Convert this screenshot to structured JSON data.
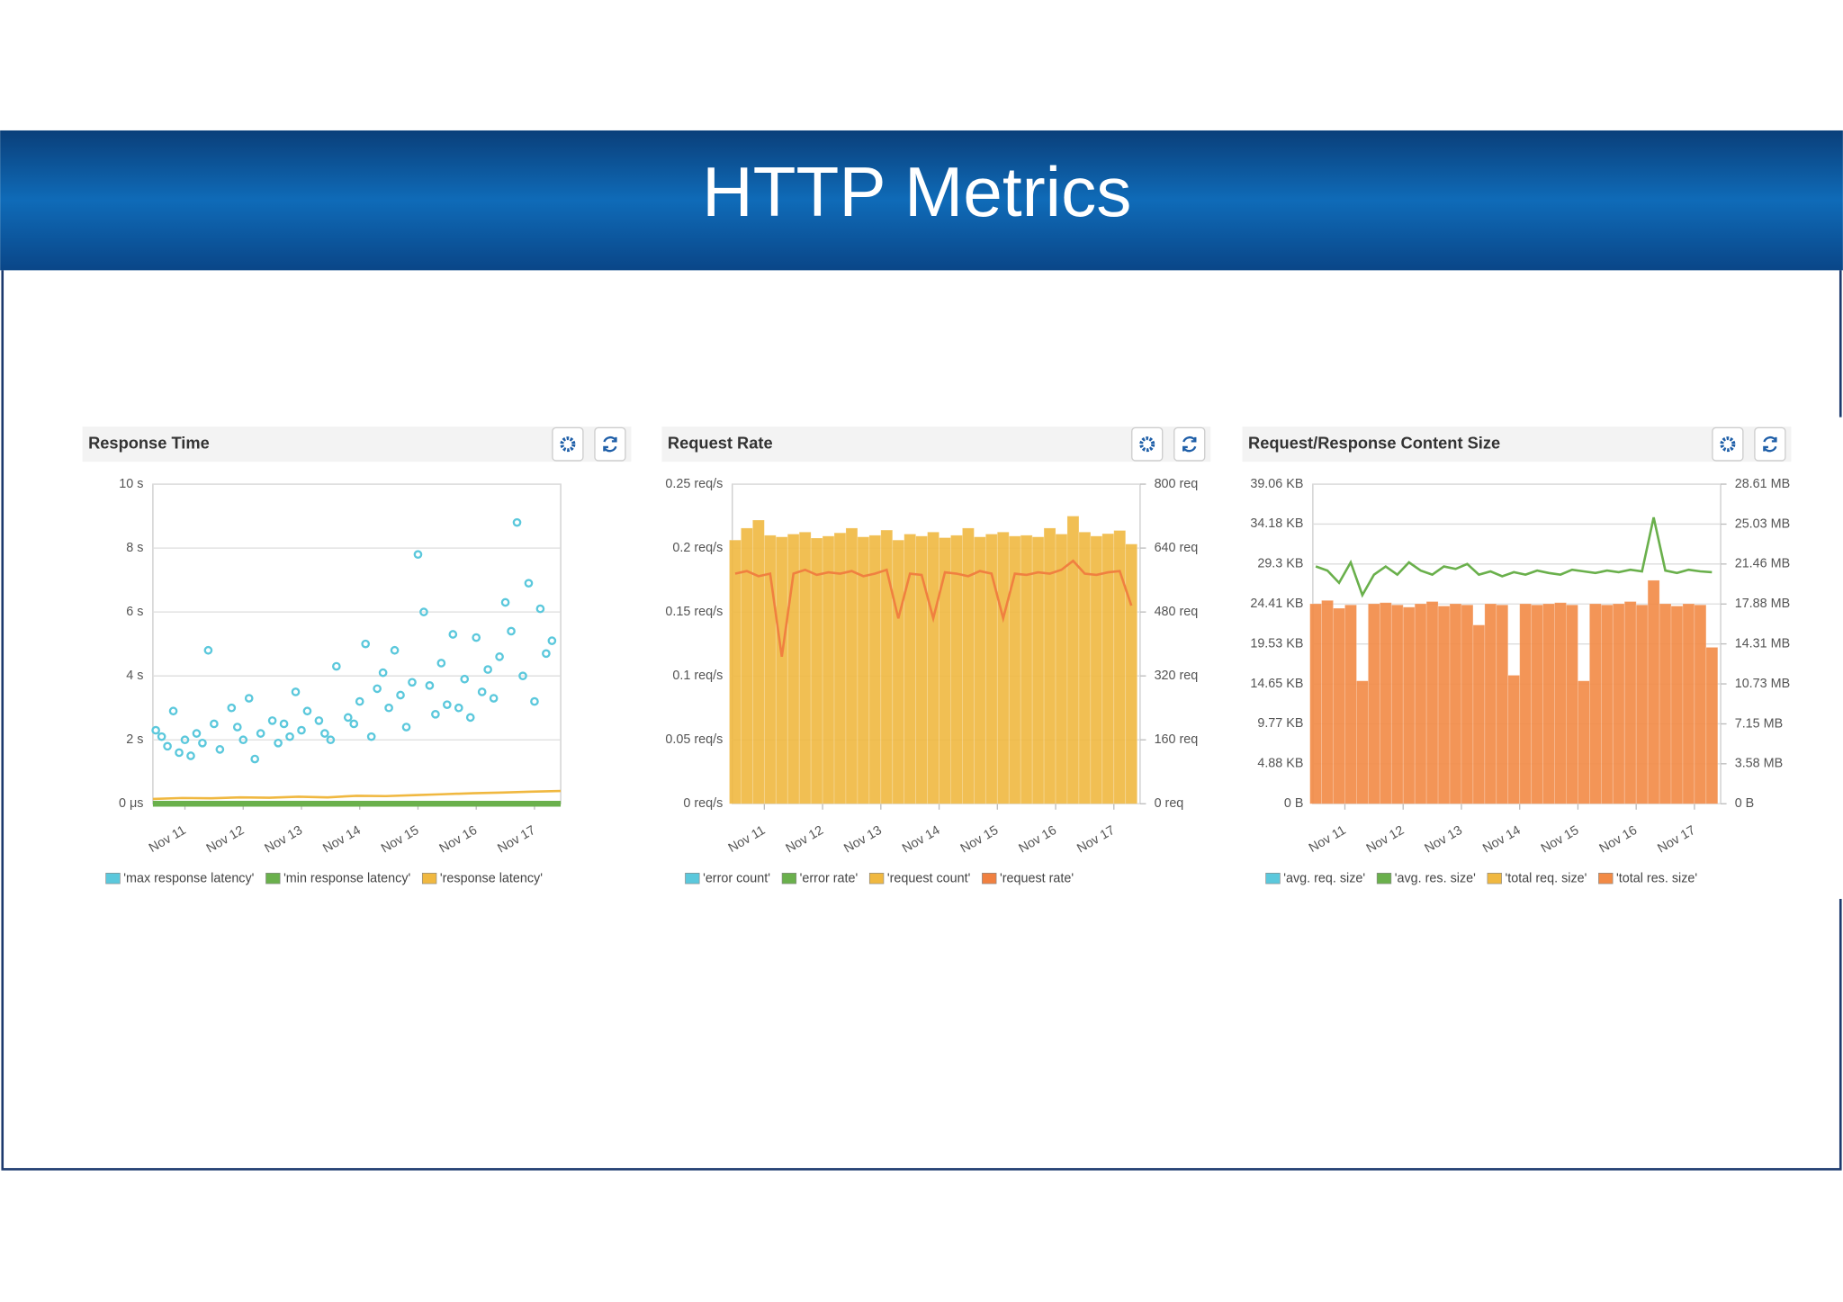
{
  "title": "HTTP Metrics",
  "chart_data": [
    {
      "type": "scatter",
      "title": "Response Time",
      "xlim": [
        10.45,
        17.45
      ],
      "xticks": [
        {
          "value": 11,
          "label": "Nov 11"
        },
        {
          "value": 12,
          "label": "Nov 12"
        },
        {
          "value": 13,
          "label": "Nov 13"
        },
        {
          "value": 14,
          "label": "Nov 14"
        },
        {
          "value": 15,
          "label": "Nov 15"
        },
        {
          "value": 16,
          "label": "Nov 16"
        },
        {
          "value": 17,
          "label": "Nov 17"
        }
      ],
      "ylim": [
        0,
        10
      ],
      "yticks": [
        {
          "value": 0,
          "label": "0 μs"
        },
        {
          "value": 2,
          "label": "2 s"
        },
        {
          "value": 4,
          "label": "4 s"
        },
        {
          "value": 6,
          "label": "6 s"
        },
        {
          "value": 8,
          "label": "8 s"
        },
        {
          "value": 10,
          "label": "10 s"
        }
      ],
      "grid": true,
      "series": [
        {
          "name": "'max response latency'",
          "color": "#5bc8dc",
          "type": "scatter",
          "x": [
            10.5,
            10.6,
            10.7,
            10.8,
            10.9,
            11.0,
            11.1,
            11.2,
            11.3,
            11.4,
            11.5,
            11.6,
            11.8,
            11.9,
            12.0,
            12.1,
            12.2,
            12.3,
            12.5,
            12.6,
            12.7,
            12.8,
            12.9,
            13.0,
            13.1,
            13.3,
            13.4,
            13.5,
            13.6,
            13.8,
            13.9,
            14.0,
            14.1,
            14.2,
            14.3,
            14.4,
            14.5,
            14.6,
            14.7,
            14.8,
            14.9,
            15.0,
            15.1,
            15.2,
            15.3,
            15.4,
            15.5,
            15.6,
            15.7,
            15.8,
            15.9,
            16.0,
            16.1,
            16.2,
            16.3,
            16.4,
            16.5,
            16.6,
            16.7,
            16.8,
            16.9,
            17.0,
            17.1,
            17.2,
            17.3
          ],
          "values": [
            2.3,
            2.1,
            1.8,
            2.9,
            1.6,
            2.0,
            1.5,
            2.2,
            1.9,
            4.8,
            2.5,
            1.7,
            3.0,
            2.4,
            2.0,
            3.3,
            1.4,
            2.2,
            2.6,
            1.9,
            2.5,
            2.1,
            3.5,
            2.3,
            2.9,
            2.6,
            2.2,
            2.0,
            4.3,
            2.7,
            2.5,
            3.2,
            5.0,
            2.1,
            3.6,
            4.1,
            3.0,
            4.8,
            3.4,
            2.4,
            3.8,
            7.8,
            6.0,
            3.7,
            2.8,
            4.4,
            3.1,
            5.3,
            3.0,
            3.9,
            2.7,
            5.2,
            3.5,
            4.2,
            3.3,
            4.6,
            6.3,
            5.4,
            8.8,
            4.0,
            6.9,
            3.2,
            6.1,
            4.7,
            5.1
          ]
        },
        {
          "name": "'min response latency'",
          "color": "#6ab04c",
          "type": "line",
          "x": [
            10.45,
            10.95,
            11.45,
            11.95,
            12.45,
            12.95,
            13.45,
            13.95,
            14.45,
            14.95,
            15.45,
            15.95,
            16.45,
            16.95,
            17.45
          ],
          "values": [
            0,
            0,
            0,
            0,
            0,
            0,
            0,
            0,
            0,
            0,
            0,
            0,
            0,
            0,
            0
          ]
        },
        {
          "name": "'response latency'",
          "color": "#f0b840",
          "type": "line",
          "x": [
            10.45,
            10.95,
            11.45,
            11.95,
            12.45,
            12.95,
            13.45,
            13.95,
            14.45,
            14.95,
            15.45,
            15.95,
            16.45,
            16.95,
            17.45
          ],
          "values": [
            0.15,
            0.18,
            0.17,
            0.2,
            0.19,
            0.22,
            0.2,
            0.25,
            0.24,
            0.27,
            0.3,
            0.33,
            0.35,
            0.38,
            0.4
          ]
        }
      ]
    },
    {
      "type": "bar",
      "title": "Request Rate",
      "xlim": [
        10.45,
        17.45
      ],
      "xticks": [
        {
          "value": 11,
          "label": "Nov 11"
        },
        {
          "value": 12,
          "label": "Nov 12"
        },
        {
          "value": 13,
          "label": "Nov 13"
        },
        {
          "value": 14,
          "label": "Nov 14"
        },
        {
          "value": 15,
          "label": "Nov 15"
        },
        {
          "value": 16,
          "label": "Nov 16"
        },
        {
          "value": 17,
          "label": "Nov 17"
        }
      ],
      "ylim": [
        0,
        0.25
      ],
      "yticks": [
        {
          "value": 0,
          "label": "0 req/s"
        },
        {
          "value": 0.05,
          "label": "0.05 req/s"
        },
        {
          "value": 0.1,
          "label": "0.1 req/s"
        },
        {
          "value": 0.15,
          "label": "0.15 req/s"
        },
        {
          "value": 0.2,
          "label": "0.2 req/s"
        },
        {
          "value": 0.25,
          "label": "0.25 req/s"
        }
      ],
      "y2lim": [
        0,
        800
      ],
      "y2ticks": [
        {
          "value": 0,
          "label": "0 req"
        },
        {
          "value": 160,
          "label": "160 req"
        },
        {
          "value": 320,
          "label": "320 req"
        },
        {
          "value": 480,
          "label": "480 req"
        },
        {
          "value": 640,
          "label": "640 req"
        },
        {
          "value": 800,
          "label": "800 req"
        }
      ],
      "grid": true,
      "series": [
        {
          "name": "'error count'",
          "color": "#5bc8dc"
        },
        {
          "name": "'error rate'",
          "color": "#6ab04c"
        },
        {
          "name": "'request count'",
          "color": "#f0b840",
          "type": "bar",
          "axis": "y2",
          "x": [
            10.5,
            10.7,
            10.9,
            11.1,
            11.3,
            11.5,
            11.7,
            11.9,
            12.1,
            12.3,
            12.5,
            12.7,
            12.9,
            13.1,
            13.3,
            13.5,
            13.7,
            13.9,
            14.1,
            14.3,
            14.5,
            14.7,
            14.9,
            15.1,
            15.3,
            15.5,
            15.7,
            15.9,
            16.1,
            16.3,
            16.5,
            16.7,
            16.9,
            17.1,
            17.3
          ],
          "values": [
            660,
            690,
            710,
            672,
            668,
            675,
            680,
            665,
            670,
            678,
            690,
            668,
            672,
            685,
            660,
            675,
            670,
            680,
            666,
            672,
            690,
            668,
            675,
            680,
            670,
            672,
            668,
            690,
            675,
            720,
            680,
            670,
            676,
            684,
            650
          ]
        },
        {
          "name": "'request rate'",
          "color": "#f08040",
          "type": "line",
          "x": [
            10.5,
            10.7,
            10.9,
            11.1,
            11.3,
            11.5,
            11.7,
            11.9,
            12.1,
            12.3,
            12.5,
            12.7,
            12.9,
            13.1,
            13.3,
            13.5,
            13.7,
            13.9,
            14.1,
            14.3,
            14.5,
            14.7,
            14.9,
            15.1,
            15.3,
            15.5,
            15.7,
            15.9,
            16.1,
            16.3,
            16.5,
            16.7,
            16.9,
            17.1,
            17.3
          ],
          "values": [
            0.18,
            0.182,
            0.178,
            0.18,
            0.115,
            0.18,
            0.183,
            0.179,
            0.181,
            0.18,
            0.182,
            0.178,
            0.18,
            0.183,
            0.145,
            0.18,
            0.179,
            0.145,
            0.181,
            0.18,
            0.178,
            0.182,
            0.18,
            0.145,
            0.18,
            0.179,
            0.181,
            0.18,
            0.183,
            0.19,
            0.18,
            0.179,
            0.181,
            0.182,
            0.155
          ]
        }
      ]
    },
    {
      "type": "bar",
      "title": "Request/Response Content Size",
      "xlim": [
        10.45,
        17.45
      ],
      "xticks": [
        {
          "value": 11,
          "label": "Nov 11"
        },
        {
          "value": 12,
          "label": "Nov 12"
        },
        {
          "value": 13,
          "label": "Nov 13"
        },
        {
          "value": 14,
          "label": "Nov 14"
        },
        {
          "value": 15,
          "label": "Nov 15"
        },
        {
          "value": 16,
          "label": "Nov 16"
        },
        {
          "value": 17,
          "label": "Nov 17"
        }
      ],
      "ylim": [
        0,
        39.06
      ],
      "yticks": [
        {
          "value": 0,
          "label": "0 B"
        },
        {
          "value": 4.88,
          "label": "4.88 KB"
        },
        {
          "value": 9.77,
          "label": "9.77 KB"
        },
        {
          "value": 14.65,
          "label": "14.65 KB"
        },
        {
          "value": 19.53,
          "label": "19.53 KB"
        },
        {
          "value": 24.41,
          "label": "24.41 KB"
        },
        {
          "value": 29.3,
          "label": "29.3 KB"
        },
        {
          "value": 34.18,
          "label": "34.18 KB"
        },
        {
          "value": 39.06,
          "label": "39.06 KB"
        }
      ],
      "y2lim": [
        0,
        28.61
      ],
      "y2ticks": [
        {
          "value": 0,
          "label": "0 B"
        },
        {
          "value": 3.58,
          "label": "3.58 MB"
        },
        {
          "value": 7.15,
          "label": "7.15 MB"
        },
        {
          "value": 10.73,
          "label": "10.73 MB"
        },
        {
          "value": 14.31,
          "label": "14.31 MB"
        },
        {
          "value": 17.88,
          "label": "17.88 MB"
        },
        {
          "value": 21.46,
          "label": "21.46 MB"
        },
        {
          "value": 25.03,
          "label": "25.03 MB"
        },
        {
          "value": 28.61,
          "label": "28.61 MB"
        }
      ],
      "grid": true,
      "series": [
        {
          "name": "'avg. req. size'",
          "color": "#5bc8dc"
        },
        {
          "name": "'avg. res. size'",
          "color": "#6ab04c",
          "type": "line",
          "x": [
            10.5,
            10.7,
            10.9,
            11.1,
            11.3,
            11.5,
            11.7,
            11.9,
            12.1,
            12.3,
            12.5,
            12.7,
            12.9,
            13.1,
            13.3,
            13.5,
            13.7,
            13.9,
            14.1,
            14.3,
            14.5,
            14.7,
            14.9,
            15.1,
            15.3,
            15.5,
            15.7,
            15.9,
            16.1,
            16.3,
            16.5,
            16.7,
            16.9,
            17.1,
            17.3
          ],
          "values": [
            29,
            28.5,
            27,
            29.5,
            25.5,
            28,
            29,
            28,
            29.5,
            28.5,
            28,
            29,
            28.7,
            29.3,
            28,
            28.4,
            27.8,
            28.3,
            28,
            28.5,
            28.2,
            28,
            28.6,
            28.4,
            28.2,
            28.5,
            28.3,
            28.6,
            28.4,
            35,
            28.5,
            28.2,
            28.6,
            28.4,
            28.3
          ]
        },
        {
          "name": "'total req. size'",
          "color": "#f0b840"
        },
        {
          "name": "'total res. size'",
          "color": "#f28a45",
          "type": "bar",
          "axis": "y2",
          "x": [
            10.5,
            10.7,
            10.9,
            11.1,
            11.3,
            11.5,
            11.7,
            11.9,
            12.1,
            12.3,
            12.5,
            12.7,
            12.9,
            13.1,
            13.3,
            13.5,
            13.7,
            13.9,
            14.1,
            14.3,
            14.5,
            14.7,
            14.9,
            15.1,
            15.3,
            15.5,
            15.7,
            15.9,
            16.1,
            16.3,
            16.5,
            16.7,
            16.9,
            17.1,
            17.3
          ],
          "values": [
            17.9,
            18.2,
            17.5,
            17.8,
            11,
            17.9,
            18,
            17.8,
            17.6,
            17.9,
            18.1,
            17.7,
            17.9,
            17.8,
            16,
            17.9,
            17.8,
            11.5,
            17.9,
            17.8,
            17.9,
            18,
            17.8,
            11,
            17.9,
            17.8,
            17.9,
            18.1,
            17.8,
            20,
            17.9,
            17.7,
            17.9,
            17.8,
            14
          ]
        }
      ]
    }
  ]
}
